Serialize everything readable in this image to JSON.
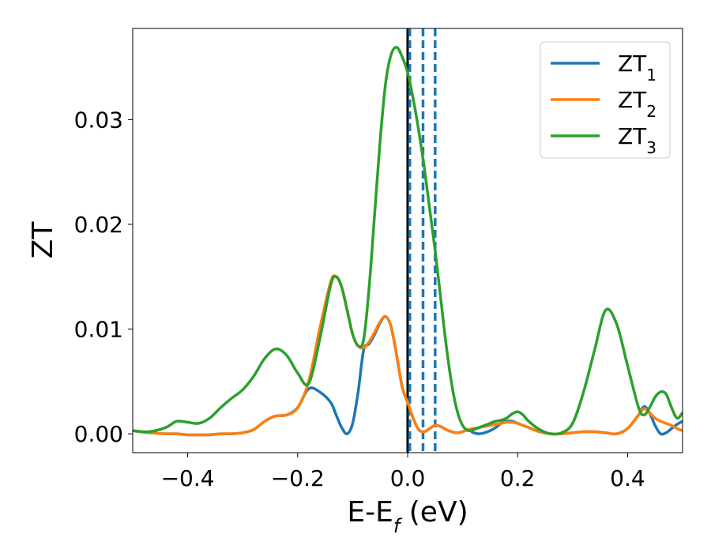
{
  "chart_data": {
    "type": "line",
    "title": "",
    "xlabel": {
      "main": "E-E",
      "sub": "f",
      "suffix": " (eV)"
    },
    "ylabel": "ZT",
    "xlim": [
      -0.5,
      0.5
    ],
    "ylim": [
      -0.0018,
      0.0387
    ],
    "xticks": [
      -0.4,
      -0.2,
      0.0,
      0.2,
      0.4
    ],
    "xtick_labels": [
      "−0.4",
      "−0.2",
      "0.0",
      "0.2",
      "0.4"
    ],
    "yticks": [
      0.0,
      0.01,
      0.02,
      0.03
    ],
    "ytick_labels": [
      "0.00",
      "0.01",
      "0.02",
      "0.03"
    ],
    "legend_position": "top-right",
    "grid": false,
    "series": [
      {
        "name": "ZT",
        "name_sub": "1",
        "color": "#1f77b4",
        "x": [
          -0.5,
          -0.47,
          -0.44,
          -0.42,
          -0.4,
          -0.38,
          -0.36,
          -0.34,
          -0.32,
          -0.3,
          -0.28,
          -0.26,
          -0.24,
          -0.22,
          -0.2,
          -0.18,
          -0.16,
          -0.14,
          -0.13,
          -0.12,
          -0.11,
          -0.1,
          -0.09,
          -0.08,
          -0.07,
          -0.06,
          -0.05,
          -0.04,
          -0.03,
          -0.02,
          -0.01,
          0.0,
          0.01,
          0.02,
          0.03,
          0.04,
          0.05,
          0.06,
          0.07,
          0.08,
          0.09,
          0.1,
          0.11,
          0.12,
          0.13,
          0.14,
          0.15,
          0.16,
          0.17,
          0.18,
          0.19,
          0.2,
          0.21,
          0.22,
          0.24,
          0.26,
          0.28,
          0.3,
          0.32,
          0.34,
          0.36,
          0.38,
          0.4,
          0.42,
          0.43,
          0.44,
          0.45,
          0.46,
          0.47,
          0.48,
          0.49,
          0.5
        ],
        "y": [
          0.0003,
          0.0001,
          0.0,
          0.0,
          -0.0001,
          -0.0001,
          -0.0001,
          0.0,
          0.0,
          0.0001,
          0.0004,
          0.0012,
          0.0017,
          0.0018,
          0.0025,
          0.0043,
          0.004,
          0.003,
          0.0018,
          0.0006,
          0.0,
          0.001,
          0.004,
          0.008,
          0.0086,
          0.0095,
          0.0106,
          0.0112,
          0.0102,
          0.0075,
          0.0045,
          0.003,
          0.0015,
          0.0004,
          0.0002,
          0.0005,
          0.0008,
          0.0007,
          0.0004,
          0.0002,
          0.0001,
          0.0002,
          0.0004,
          0.0001,
          0.0,
          0.0001,
          0.0003,
          0.0006,
          0.001,
          0.0012,
          0.0012,
          0.001,
          0.0008,
          0.0006,
          0.0002,
          0.0,
          0.0,
          0.0001,
          0.0002,
          0.0002,
          0.0001,
          0.0,
          0.0005,
          0.0018,
          0.0026,
          0.002,
          0.0008,
          0.0,
          0.0001,
          0.0005,
          0.0009,
          0.0012
        ]
      },
      {
        "name": "ZT",
        "name_sub": "2",
        "color": "#ff7f0e",
        "x": [
          -0.5,
          -0.47,
          -0.44,
          -0.42,
          -0.4,
          -0.38,
          -0.36,
          -0.34,
          -0.32,
          -0.3,
          -0.28,
          -0.26,
          -0.24,
          -0.22,
          -0.2,
          -0.18,
          -0.16,
          -0.14,
          -0.13,
          -0.12,
          -0.11,
          -0.1,
          -0.09,
          -0.08,
          -0.07,
          -0.06,
          -0.05,
          -0.04,
          -0.03,
          -0.02,
          -0.01,
          0.0,
          0.01,
          0.02,
          0.03,
          0.04,
          0.05,
          0.06,
          0.07,
          0.08,
          0.09,
          0.1,
          0.11,
          0.12,
          0.13,
          0.14,
          0.15,
          0.16,
          0.17,
          0.18,
          0.19,
          0.2,
          0.21,
          0.22,
          0.24,
          0.26,
          0.28,
          0.3,
          0.32,
          0.34,
          0.36,
          0.38,
          0.4,
          0.42,
          0.43,
          0.44,
          0.45,
          0.46,
          0.47,
          0.48,
          0.49,
          0.5
        ],
        "y": [
          0.0003,
          0.0001,
          0.0,
          0.0,
          -0.0001,
          -0.0001,
          -0.0001,
          0.0,
          0.0,
          0.0001,
          0.0004,
          0.0012,
          0.0017,
          0.0018,
          0.0025,
          0.005,
          0.01,
          0.0145,
          0.015,
          0.014,
          0.0118,
          0.0095,
          0.0084,
          0.0082,
          0.0088,
          0.0097,
          0.0107,
          0.0112,
          0.0102,
          0.0075,
          0.0045,
          0.003,
          0.0015,
          0.0004,
          0.0002,
          0.0005,
          0.0008,
          0.0007,
          0.0004,
          0.0002,
          0.0001,
          0.0002,
          0.0004,
          0.0005,
          0.0006,
          0.0007,
          0.0008,
          0.0009,
          0.001,
          0.0011,
          0.0011,
          0.001,
          0.0008,
          0.0006,
          0.0002,
          0.0,
          0.0,
          0.0001,
          0.0002,
          0.0002,
          0.0001,
          0.0,
          0.0005,
          0.0018,
          0.0024,
          0.002,
          0.0015,
          0.0012,
          0.001,
          0.0008,
          0.0005,
          0.0003
        ]
      },
      {
        "name": "ZT",
        "name_sub": "3",
        "color": "#2ca02c",
        "x": [
          -0.5,
          -0.47,
          -0.44,
          -0.42,
          -0.4,
          -0.38,
          -0.36,
          -0.34,
          -0.32,
          -0.3,
          -0.28,
          -0.26,
          -0.24,
          -0.22,
          -0.2,
          -0.18,
          -0.16,
          -0.14,
          -0.13,
          -0.12,
          -0.11,
          -0.1,
          -0.09,
          -0.08,
          -0.07,
          -0.06,
          -0.05,
          -0.04,
          -0.03,
          -0.02,
          -0.01,
          0.0,
          0.01,
          0.02,
          0.03,
          0.04,
          0.05,
          0.06,
          0.07,
          0.08,
          0.09,
          0.1,
          0.11,
          0.12,
          0.13,
          0.14,
          0.15,
          0.16,
          0.17,
          0.18,
          0.19,
          0.2,
          0.21,
          0.22,
          0.24,
          0.26,
          0.28,
          0.3,
          0.32,
          0.34,
          0.36,
          0.38,
          0.4,
          0.42,
          0.43,
          0.44,
          0.45,
          0.46,
          0.47,
          0.48,
          0.49,
          0.5
        ],
        "y": [
          0.0003,
          0.0002,
          0.0006,
          0.0012,
          0.0011,
          0.001,
          0.0015,
          0.0025,
          0.0034,
          0.0042,
          0.0055,
          0.0072,
          0.0081,
          0.0075,
          0.0058,
          0.0048,
          0.009,
          0.0142,
          0.015,
          0.014,
          0.0118,
          0.0095,
          0.0084,
          0.009,
          0.014,
          0.021,
          0.028,
          0.0335,
          0.0362,
          0.0369,
          0.036,
          0.0345,
          0.032,
          0.029,
          0.0255,
          0.0215,
          0.0175,
          0.013,
          0.0085,
          0.0048,
          0.0022,
          0.0008,
          0.0003,
          0.0004,
          0.0006,
          0.0008,
          0.001,
          0.0012,
          0.0013,
          0.0015,
          0.0019,
          0.0021,
          0.0018,
          0.0012,
          0.0004,
          0.0,
          0.0001,
          0.001,
          0.004,
          0.008,
          0.0118,
          0.0105,
          0.0065,
          0.0025,
          0.0018,
          0.0025,
          0.0035,
          0.004,
          0.0038,
          0.0025,
          0.0015,
          0.002
        ]
      }
    ],
    "vlines": [
      {
        "x": 0.0,
        "style": "solid",
        "color": "#000000"
      },
      {
        "x": 0.004,
        "style": "dashed",
        "color": "#1f77b4"
      },
      {
        "x": 0.028,
        "style": "dashed",
        "color": "#1f77b4"
      },
      {
        "x": 0.05,
        "style": "dashed",
        "color": "#1f77b4"
      }
    ]
  }
}
